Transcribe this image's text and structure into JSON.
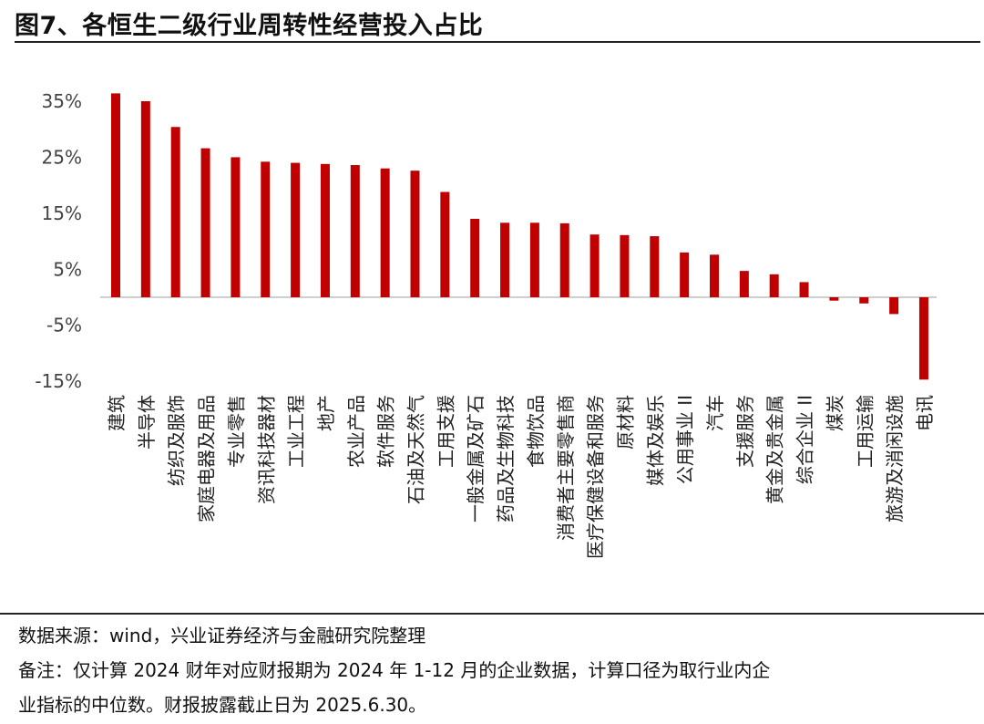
{
  "title": "图7、各恒生二级行业周转性经营投入占比",
  "source": "数据来源：wind，兴业证券经济与金融研究院整理",
  "note_line1": "备注：仅计算 2024 财年对应财报期为 2024 年 1-12 月的企业数据，计算口径为取行业内企",
  "note_line2": "业指标的中位数。财报披露截止日为 2025.6.30。",
  "chart_data": {
    "type": "bar",
    "title": "",
    "xlabel": "",
    "ylabel": "",
    "yticks": [
      "35%",
      "25%",
      "15%",
      "5%",
      "-5%",
      "-15%"
    ],
    "ytick_values": [
      35,
      25,
      15,
      5,
      -5,
      -15
    ],
    "ylim": [
      -15,
      35
    ],
    "grid": false,
    "bar_color": "#c00000",
    "categories": [
      "建筑",
      "半导体",
      "纺织及服饰",
      "家庭电器及用品",
      "专业零售",
      "资讯科技器材",
      "工业工程",
      "地产",
      "农业产品",
      "软件服务",
      "石油及天然气",
      "工用支援",
      "一般金属及矿石",
      "药品及生物科技",
      "食物饮品",
      "消费者主要零售商",
      "医疗保健设备和服务",
      "原材料",
      "媒体及娱乐",
      "公用事业 II",
      "汽车",
      "支援服务",
      "黄金及贵金属",
      "综合企业 II",
      "煤炭",
      "工用运输",
      "旅游及消闲设施",
      "电讯"
    ],
    "values": [
      36.4,
      35.0,
      30.4,
      26.6,
      25.0,
      24.2,
      24.0,
      23.8,
      23.6,
      23.0,
      22.6,
      18.8,
      14.0,
      13.3,
      13.3,
      13.2,
      11.2,
      11.1,
      10.9,
      8.0,
      7.6,
      4.7,
      4.1,
      2.7,
      -0.6,
      -1.1,
      -3.0,
      -14.7
    ]
  }
}
